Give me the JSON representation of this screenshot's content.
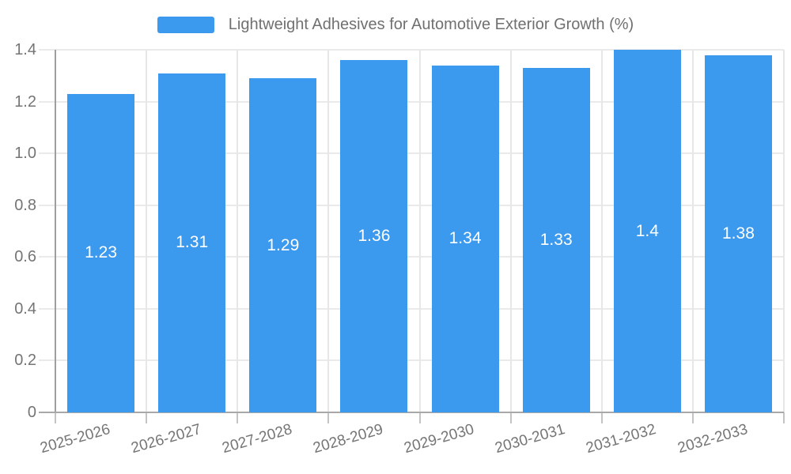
{
  "chart_data": {
    "type": "bar",
    "title": "Lightweight Adhesives for Automotive Exterior Growth (%)",
    "legend": [
      "Lightweight Adhesives for Automotive Exterior Growth (%)"
    ],
    "legend_position": "top-center",
    "categories": [
      "2025-2026",
      "2026-2027",
      "2027-2028",
      "2028-2029",
      "2029-2030",
      "2030-2031",
      "2031-2032",
      "2032-2033"
    ],
    "values": [
      1.23,
      1.31,
      1.29,
      1.36,
      1.34,
      1.33,
      1.4,
      1.38
    ],
    "bar_labels": [
      "1.23",
      "1.31",
      "1.29",
      "1.36",
      "1.34",
      "1.33",
      "1.4",
      "1.38"
    ],
    "xlabel": "",
    "ylabel": "",
    "ylim": [
      0,
      1.4
    ],
    "yticks": [
      0,
      0.2,
      0.4,
      0.6,
      0.8,
      1.0,
      1.2,
      1.4
    ],
    "ytick_labels": [
      "0",
      "0.2",
      "0.4",
      "0.6",
      "0.8",
      "1.0",
      "1.2",
      "1.4"
    ],
    "grid": true,
    "colors": {
      "bar": "#3b99ee",
      "bar_label": "#ffffff",
      "grid_line": "#eaeaea",
      "axis_line": "#a0a0a0",
      "tick_text": "#757575",
      "legend_text": "#707070"
    }
  }
}
